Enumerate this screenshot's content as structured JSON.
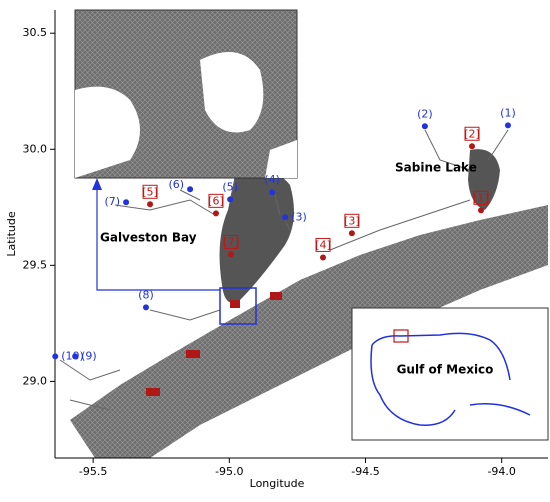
{
  "map": {
    "xlabel": "Longitude",
    "ylabel": "Latitude",
    "xlim": [
      -95.64,
      -93.83
    ],
    "ylim": [
      28.67,
      30.6
    ],
    "xticks": [
      -95.5,
      {
        "value": -95,
        "label": "-95.0"
      },
      -94.5,
      {
        "value": -94,
        "label": "-94.0"
      }
    ],
    "yticks": [
      {
        "value": 29,
        "label": "29.0"
      },
      29.5,
      {
        "value": 30,
        "label": "30.0"
      },
      30.5
    ],
    "stations": [
      {
        "label": "(1)",
        "lon": -93.977,
        "lat": 30.103
      },
      {
        "label": "(2)",
        "lon": -94.282,
        "lat": 30.099
      },
      {
        "label": "(3)",
        "lon": -94.795,
        "lat": 29.707
      },
      {
        "label": "(4)",
        "lon": -94.843,
        "lat": 29.815
      },
      {
        "label": "(5)",
        "lon": -94.997,
        "lat": 29.784
      },
      {
        "label": "(6)",
        "lon": -95.144,
        "lat": 29.828
      },
      {
        "label": "(7)",
        "lon": -95.379,
        "lat": 29.772
      },
      {
        "label": "(8)",
        "lon": -95.306,
        "lat": 29.319
      },
      {
        "label": "(9)",
        "lon": -95.566,
        "lat": 29.108
      },
      {
        "label": "(10)",
        "lon": -95.639,
        "lat": 29.108
      }
    ],
    "sites": [
      {
        "label": "[1]",
        "lon": -94.076,
        "lat": 29.737
      },
      {
        "label": "[2]",
        "lon": -94.109,
        "lat": 30.013
      },
      {
        "label": "[3]",
        "lon": -94.55,
        "lat": 29.638
      },
      {
        "label": "[4]",
        "lon": -94.656,
        "lat": 29.534
      },
      {
        "label": "[5]",
        "lon": -95.291,
        "lat": 29.763
      },
      {
        "label": "[6]",
        "lon": -95.049,
        "lat": 29.724
      },
      {
        "label": "[7]",
        "lon": -94.994,
        "lat": 29.547
      }
    ],
    "annotations": {
      "sabine": "Sabine Lake",
      "galveston": "Galveston Bay",
      "gulf": "Gulf of Mexico"
    }
  }
}
